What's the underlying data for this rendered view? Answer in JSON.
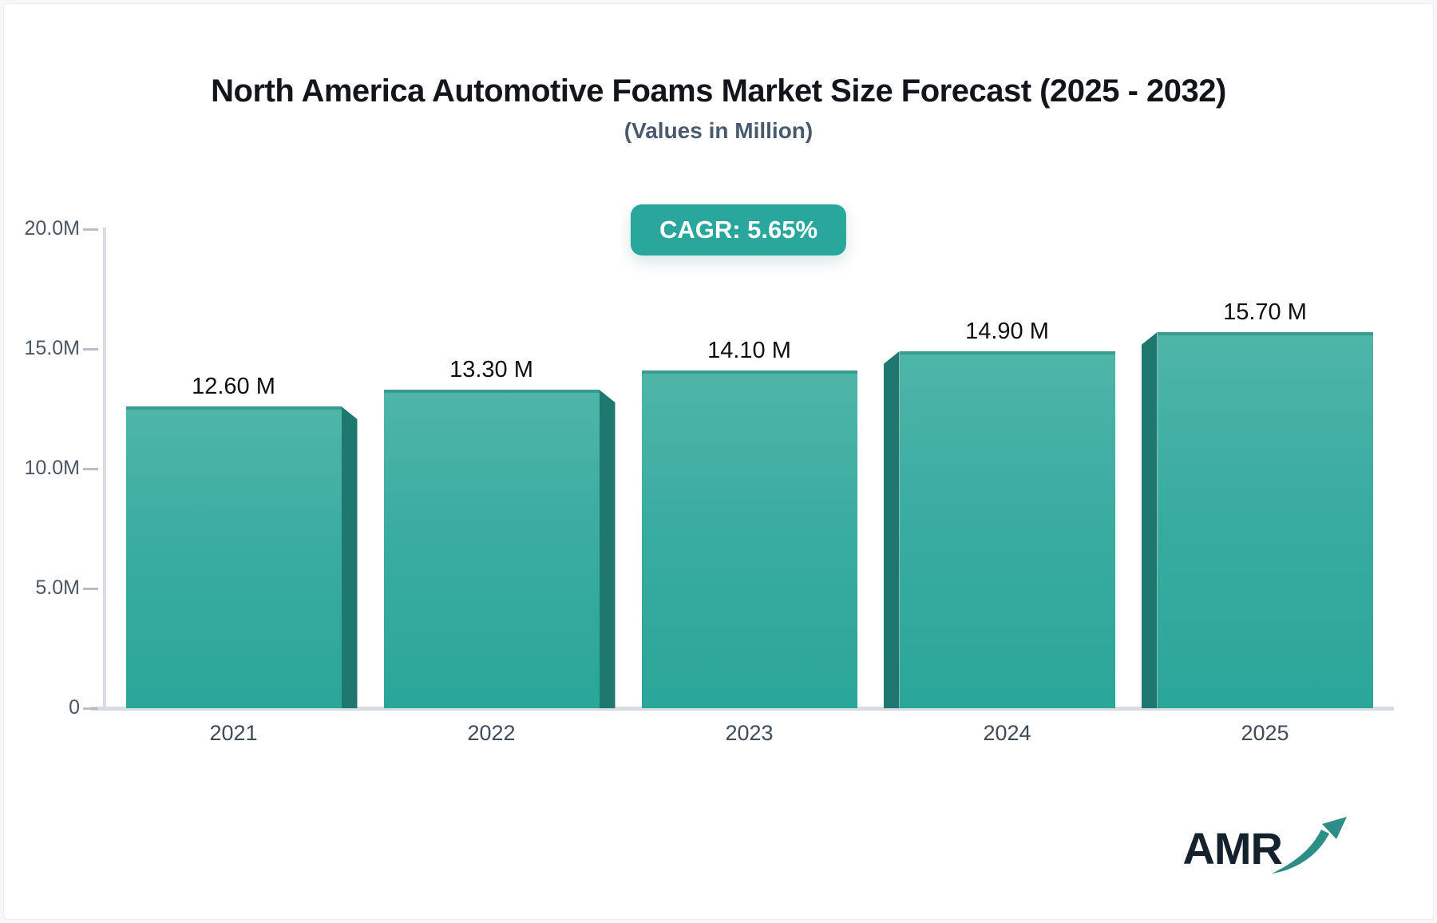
{
  "page": {
    "title": "North America Automotive Foams Market Size Forecast (2025 - 2032)",
    "subtitle": "(Values in Million)",
    "cagr_badge": "CAGR: 5.65%",
    "logo_text": "AMR"
  },
  "colors": {
    "bar_gradient_top": "#4fb5a9",
    "bar_gradient_bottom": "#2aa699",
    "bar_side_face": "#1f786f",
    "bar_top_edge": "#3a9c90",
    "badge_background": "#2aa79c",
    "axis_line": "#d8dbe0",
    "y_tick_text": "#4b5563",
    "x_label_text": "#3f4a5a",
    "value_label_text": "#0d0f12",
    "logo_text_color": "#16212e",
    "logo_arrow_color": "#2d8e88"
  },
  "chart_data": {
    "type": "bar",
    "title": "North America Automotive Foams Market Size Forecast (2025 - 2032)",
    "subtitle": "(Values in Million)",
    "annotation": "CAGR: 5.65%",
    "categories": [
      "2021",
      "2022",
      "2023",
      "2024",
      "2025"
    ],
    "values": [
      12.6,
      13.3,
      14.1,
      14.9,
      15.7
    ],
    "value_labels": [
      "12.60 M",
      "13.30 M",
      "14.10 M",
      "14.90 M",
      "15.70 M"
    ],
    "unit": "Million",
    "xlabel": "",
    "ylabel": "",
    "ylim": [
      0,
      20
    ],
    "yticks": [
      {
        "value": 0,
        "label": "0"
      },
      {
        "value": 5,
        "label": "5.0M"
      },
      {
        "value": 10,
        "label": "10.0M"
      },
      {
        "value": 15,
        "label": "15.0M"
      },
      {
        "value": 20,
        "label": "20.0M"
      }
    ],
    "grid": false,
    "legend": false,
    "bar_style": "3d-extruded-perspective"
  }
}
